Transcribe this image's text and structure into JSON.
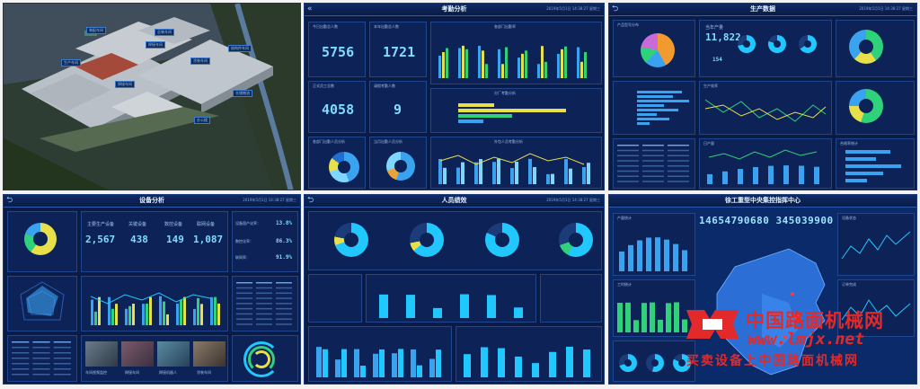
{
  "aerial": {
    "labels": [
      "装配车间",
      "总装车间",
      "焊接车间",
      "结构件车间",
      "生产车间",
      "涂装车间",
      "焊接车间",
      "仓储物流",
      "办公楼"
    ]
  },
  "attendance": {
    "title": "考勤分析",
    "time": "2019年5月1日 14:38:27 星期三",
    "stats": [
      {
        "label": "今日出勤总人数",
        "value": "5756"
      },
      {
        "label": "本年出勤总人数",
        "value": "1721"
      },
      {
        "label": "正式员工总数",
        "value": "4058"
      },
      {
        "label": "请假考勤人数",
        "value": "9"
      }
    ],
    "charts": [
      "各部门出勤率",
      "分厂考勤分析",
      "各部门出勤人员分析",
      "当月出勤人员分析",
      "外包人员考勤分析"
    ]
  },
  "production": {
    "title": "生产数据",
    "time": "2019年5月1日 14:38:27 星期三",
    "output_label": "当年产量",
    "output_value": "11,822",
    "sub_value": "154",
    "charts": [
      "产品型号分布",
      "生产效率",
      "生产质量分析",
      "日产量",
      "合格率统计"
    ]
  },
  "equipment": {
    "title": "设备分析",
    "time": "2019年5月1日 14:38:27 星期三",
    "stats": [
      {
        "label": "主要生产设备",
        "value": "2,567"
      },
      {
        "label": "关键设备",
        "value": "438"
      },
      {
        "label": "数控设备",
        "value": "149"
      },
      {
        "label": "联网设备",
        "value": "1,087"
      }
    ],
    "rates": [
      {
        "label": "设备国产化率：",
        "value": "13.8%"
      },
      {
        "label": "数控化率：",
        "value": "86.3%"
      },
      {
        "label": "联网率：",
        "value": "91.9%"
      }
    ],
    "cameras": [
      "车间视频监控",
      "焊接车间",
      "焊接机器人",
      "涂装车间"
    ]
  },
  "performance": {
    "title": "人员绩效",
    "time": "2019年5月1日 14:38:27 星期三"
  },
  "center": {
    "title": "徐工重型中央集控指挥中心",
    "digits": "14654790680 345039900",
    "charts": [
      "产量统计",
      "工时统计",
      "设备状态",
      "订单完成"
    ]
  },
  "watermark": {
    "cn": "中国路面机械网",
    "en": "www.lmjx.net",
    "slogan": "买卖设备上中国路面机械网"
  },
  "icons": [
    "back-arrow-icon",
    "double-chevron-left-icon",
    "pie-icon",
    "logo-icon"
  ],
  "colors": {
    "accent": "#21c8ff",
    "yellow": "#e8e04a",
    "green": "#2fd27a",
    "bg": "#0a1b45",
    "watermark_red": "#e22a2a"
  }
}
